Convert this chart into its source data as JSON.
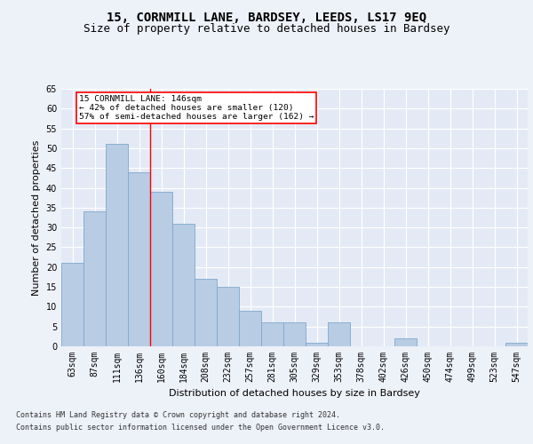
{
  "title1": "15, CORNMILL LANE, BARDSEY, LEEDS, LS17 9EQ",
  "title2": "Size of property relative to detached houses in Bardsey",
  "xlabel": "Distribution of detached houses by size in Bardsey",
  "ylabel": "Number of detached properties",
  "categories": [
    "63sqm",
    "87sqm",
    "111sqm",
    "136sqm",
    "160sqm",
    "184sqm",
    "208sqm",
    "232sqm",
    "257sqm",
    "281sqm",
    "305sqm",
    "329sqm",
    "353sqm",
    "378sqm",
    "402sqm",
    "426sqm",
    "450sqm",
    "474sqm",
    "499sqm",
    "523sqm",
    "547sqm"
  ],
  "values": [
    21,
    34,
    51,
    44,
    39,
    31,
    17,
    15,
    9,
    6,
    6,
    1,
    6,
    0,
    0,
    2,
    0,
    0,
    0,
    0,
    1
  ],
  "bar_color": "#b8cce4",
  "bar_edge_color": "#7fa8cc",
  "ylim": [
    0,
    65
  ],
  "yticks": [
    0,
    5,
    10,
    15,
    20,
    25,
    30,
    35,
    40,
    45,
    50,
    55,
    60,
    65
  ],
  "property_line_x": 3.5,
  "annotation_text1": "15 CORNMILL LANE: 146sqm",
  "annotation_text2": "← 42% of detached houses are smaller (120)",
  "annotation_text3": "57% of semi-detached houses are larger (162) →",
  "footer1": "Contains HM Land Registry data © Crown copyright and database right 2024.",
  "footer2": "Contains public sector information licensed under the Open Government Licence v3.0.",
  "background_color": "#edf1f8",
  "plot_bg_color": "#e4eaf5",
  "grid_color": "#ffffff",
  "title_fontsize": 10,
  "subtitle_fontsize": 9,
  "tick_fontsize": 7,
  "label_fontsize": 8,
  "footer_fontsize": 6
}
